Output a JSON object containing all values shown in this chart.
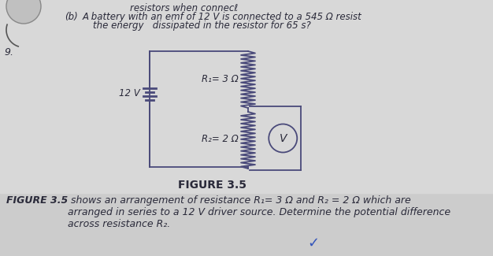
{
  "bg_color": "#d4d4d4",
  "white_area_color": "#e8e8e8",
  "title_text": "FIGURE 3.5",
  "caption_bold": "FIGURE 3.5",
  "caption_rest": " shows an arrangement of resistance R₁= 3 Ω and R₂ = 2 Ω which are\narranged in series to a 12 V driver source. Determine the potential difference\nacross resistance R₂.",
  "top_text_line1": "resistors when connecℓ ",
  "top_text_line2": "A battery with an emf of 12 V is connected to a 545 Ω resist",
  "top_text_line2_prefix": "(b)",
  "top_text_line3": "the energy   dissipated in the resistor for 65 s?",
  "question_number": "9.",
  "battery_label": "12 V",
  "R1_label": "R₁= 3 Ω",
  "R2_label": "R₂= 2 Ω",
  "voltmeter_label": "V",
  "text_color": "#2a2a3a",
  "circuit_color": "#4a4a7a",
  "font_size_caption": 9.0,
  "font_size_top": 8.5,
  "checkmark_color": "#3355bb",
  "fig_title_fontsize": 10
}
